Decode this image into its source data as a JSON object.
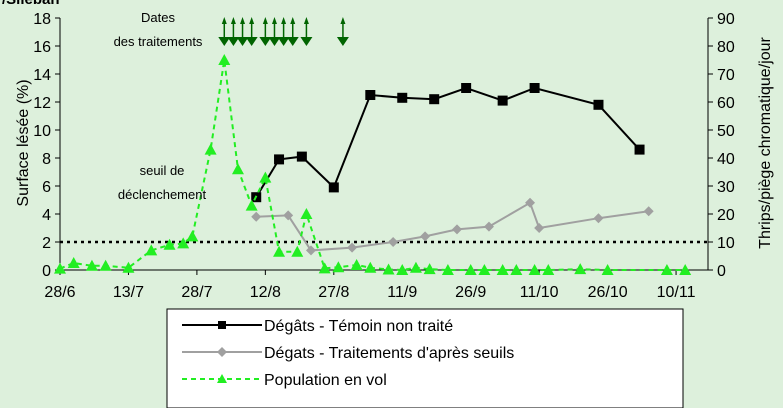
{
  "chart_data": {
    "type": "line",
    "title_fragment": "/Sileban",
    "ylabel_left": "Surface lésée (%)",
    "ylabel_right": "Thrips/piège chromatique/jour",
    "ylim_left": [
      0,
      18
    ],
    "ylim_right": [
      0,
      90
    ],
    "yticks_left": [
      "0",
      "2",
      "4",
      "6",
      "8",
      "10",
      "12",
      "14",
      "16",
      "18"
    ],
    "yticks_right": [
      "0",
      "10",
      "20",
      "30",
      "40",
      "50",
      "60",
      "70",
      "80",
      "90"
    ],
    "x_start_day": 0,
    "x_end_day": 142,
    "xtick_labels": [
      "28/6",
      "13/7",
      "28/7",
      "12/8",
      "27/8",
      "11/9",
      "26/9",
      "11/10",
      "26/10",
      "10/11"
    ],
    "annotations": {
      "dates_line1": "Dates",
      "dates_line2": "des traitements",
      "seuil_line1": "seuil de",
      "seuil_line2": "déclenchement"
    },
    "threshold": {
      "y_left": 2,
      "style": "dotted"
    },
    "treatment_dates": [
      "3/8",
      "5/8",
      "7/8",
      "9/8",
      "12/8",
      "14/8",
      "16/8",
      "18/8",
      "21/8",
      "29/8"
    ],
    "series": [
      {
        "name": "Dégâts - Témoin non traité",
        "axis": "left",
        "color": "#000000",
        "marker": "square",
        "dash": "solid",
        "points": [
          [
            "10/8",
            5.2
          ],
          [
            "15/8",
            7.9
          ],
          [
            "20/8",
            8.1
          ],
          [
            "27/8",
            5.9
          ],
          [
            "4/9",
            12.5
          ],
          [
            "11/9",
            12.3
          ],
          [
            "18/9",
            12.2
          ],
          [
            "25/9",
            13.0
          ],
          [
            "3/10",
            12.1
          ],
          [
            "10/10",
            13.0
          ],
          [
            "24/10",
            11.8
          ],
          [
            "2/11",
            8.6
          ]
        ]
      },
      {
        "name": "Dégats - Traitements d'après seuils",
        "axis": "left",
        "color": "#a0a0a0",
        "marker": "diamond",
        "dash": "solid",
        "points": [
          [
            "10/8",
            3.8
          ],
          [
            "17/8",
            3.9
          ],
          [
            "22/8",
            1.4
          ],
          [
            "31/8",
            1.6
          ],
          [
            "9/9",
            2.0
          ],
          [
            "16/9",
            2.4
          ],
          [
            "23/9",
            2.9
          ],
          [
            "30/9",
            3.1
          ],
          [
            "9/10",
            4.8
          ],
          [
            "11/10",
            3.0
          ],
          [
            "24/10",
            3.7
          ],
          [
            "4/11",
            4.2
          ]
        ]
      },
      {
        "name": "Population en vol",
        "axis": "right",
        "color": "#22ee22",
        "marker": "triangle",
        "dash": "dashed",
        "points": [
          [
            "28/6",
            0.5
          ],
          [
            "1/7",
            2.5
          ],
          [
            "5/7",
            1.5
          ],
          [
            "8/7",
            1.5
          ],
          [
            "13/7",
            0.8
          ],
          [
            "18/7",
            7
          ],
          [
            "22/7",
            9
          ],
          [
            "25/7",
            9.5
          ],
          [
            "27/7",
            12
          ],
          [
            "31/7",
            43
          ],
          [
            "3/8",
            75
          ],
          [
            "6/8",
            36
          ],
          [
            "9/8",
            23
          ],
          [
            "12/8",
            33
          ],
          [
            "15/8",
            6.5
          ],
          [
            "19/8",
            6.5
          ],
          [
            "21/8",
            20
          ],
          [
            "25/8",
            0.6
          ],
          [
            "28/8",
            1
          ],
          [
            "1/9",
            1.8
          ],
          [
            "4/9",
            0.8
          ],
          [
            "8/9",
            0.2
          ],
          [
            "11/9",
            0
          ],
          [
            "14/9",
            0.8
          ],
          [
            "17/9",
            0.3
          ],
          [
            "21/9",
            0
          ],
          [
            "26/9",
            0
          ],
          [
            "29/9",
            0
          ],
          [
            "3/10",
            0
          ],
          [
            "6/10",
            0
          ],
          [
            "10/10",
            0
          ],
          [
            "13/10",
            0
          ],
          [
            "20/10",
            0.3
          ],
          [
            "26/10",
            0
          ],
          [
            "8/11",
            0
          ],
          [
            "12/11",
            0
          ]
        ]
      }
    ],
    "legend_position": "bottom"
  }
}
